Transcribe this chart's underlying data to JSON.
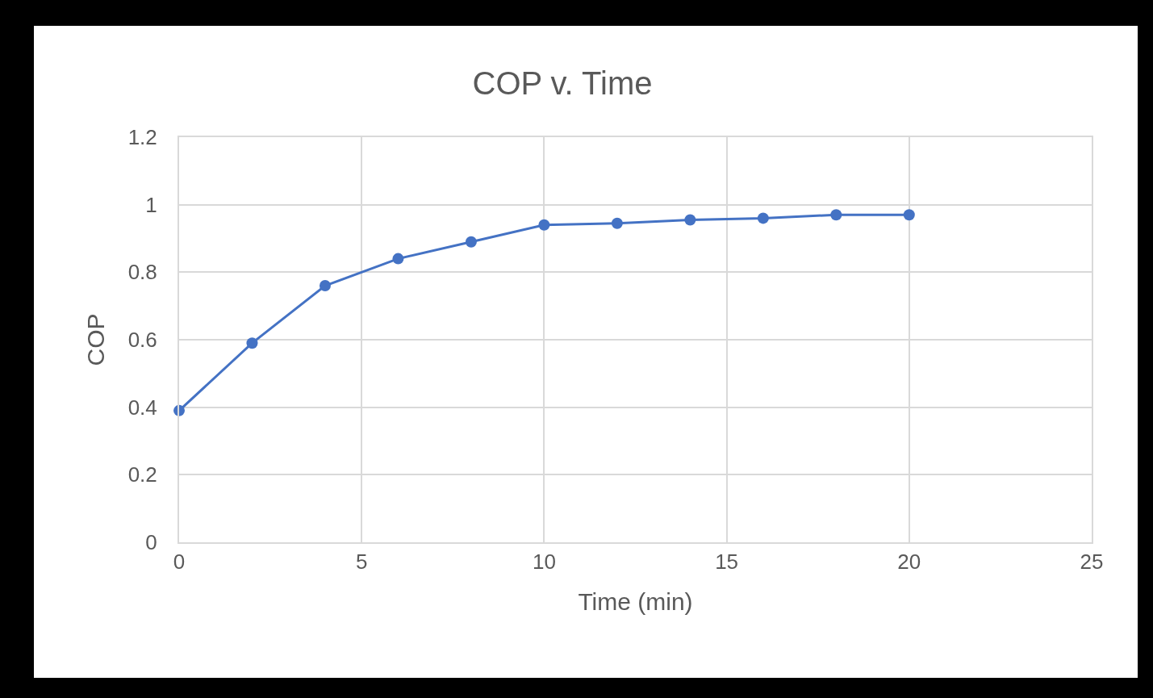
{
  "chart_data": {
    "type": "line",
    "title": "COP v. Time",
    "xlabel": "Time (min)",
    "ylabel": "COP",
    "x": [
      0,
      2,
      4,
      6,
      8,
      10,
      12,
      14,
      16,
      18,
      20
    ],
    "series": [
      {
        "color": "#4472c4",
        "values": [
          0.39,
          0.59,
          0.76,
          0.84,
          0.89,
          0.94,
          0.945,
          0.955,
          0.96,
          0.97,
          0.97
        ]
      }
    ],
    "xlim": [
      0,
      25
    ],
    "xticks": [
      0,
      5,
      10,
      15,
      20,
      25
    ],
    "ylim": [
      0,
      1.2
    ],
    "yticks": [
      0,
      0.2,
      0.4,
      0.6,
      0.8,
      1,
      1.2
    ],
    "grid": true,
    "marker": "circle",
    "line_style": "solid"
  }
}
